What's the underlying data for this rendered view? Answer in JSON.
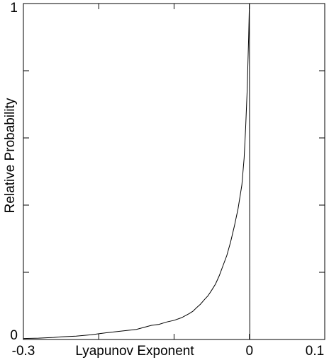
{
  "chart_data": {
    "type": "line",
    "xlabel": "Lyapunov Exponent",
    "ylabel": "Relative Probability",
    "x": [
      -0.3,
      -0.28,
      -0.26,
      -0.25,
      -0.23,
      -0.21,
      -0.2,
      -0.19,
      -0.17,
      -0.15,
      -0.14,
      -0.13,
      -0.12,
      -0.11,
      -0.1,
      -0.09,
      -0.08,
      -0.075,
      -0.07,
      -0.065,
      -0.06,
      -0.055,
      -0.05,
      -0.045,
      -0.04,
      -0.035,
      -0.03,
      -0.025,
      -0.02,
      -0.015,
      -0.01,
      -0.007,
      -0.005,
      -0.003,
      -0.002,
      -0.001,
      0,
      0.0005,
      0.1
    ],
    "values": [
      0.003,
      0.004,
      0.006,
      0.008,
      0.01,
      0.014,
      0.017,
      0.02,
      0.025,
      0.03,
      0.036,
      0.042,
      0.045,
      0.052,
      0.057,
      0.065,
      0.077,
      0.084,
      0.095,
      0.105,
      0.118,
      0.13,
      0.147,
      0.165,
      0.19,
      0.22,
      0.25,
      0.29,
      0.337,
      0.39,
      0.46,
      0.54,
      0.63,
      0.74,
      0.82,
      0.9,
      1.0,
      0,
      0
    ],
    "color": "#000000",
    "xlim": [
      -0.3,
      0.1
    ],
    "ylim": [
      0,
      1
    ],
    "xticks": [
      -0.3,
      0,
      0.1
    ],
    "xminorticks": [
      -0.2,
      -0.1
    ],
    "yticks": [
      0,
      1
    ],
    "yminorticks": [
      0.2,
      0.4,
      0.6,
      0.8
    ],
    "grid": false
  }
}
